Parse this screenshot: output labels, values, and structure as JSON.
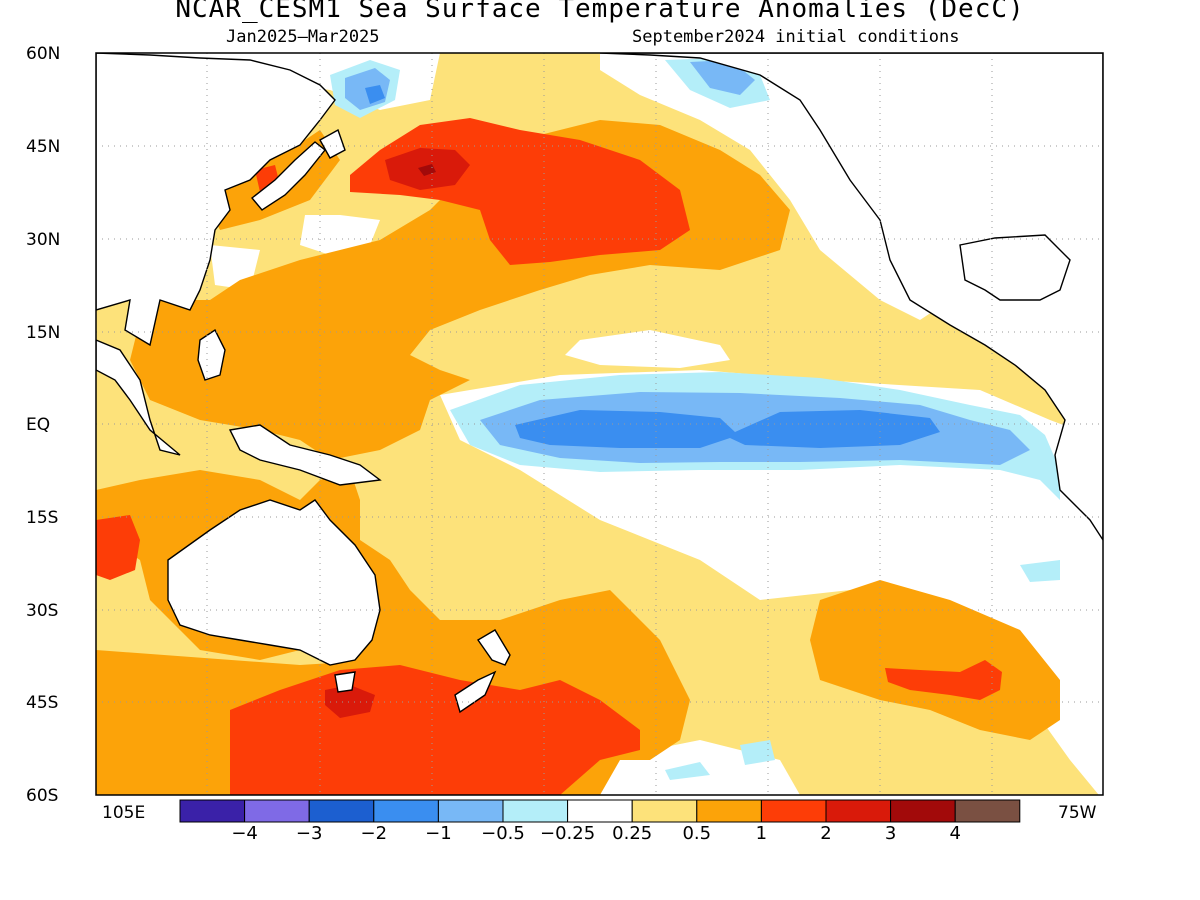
{
  "title": "NCAR_CESM1 Sea Surface Temperature Anomalies (DecC)",
  "subtitle_left": "Jan2025–Mar2025",
  "subtitle_right": "September2024 initial conditions",
  "lat_labels": [
    "60N",
    "45N",
    "30N",
    "15N",
    "EQ",
    "15S",
    "30S",
    "45S",
    "60S"
  ],
  "lon_labels": {
    "west": "105E",
    "east": "75W"
  },
  "colorbar": {
    "colors": [
      "#3a21a8",
      "#7f6ae6",
      "#1c5fd0",
      "#3a8ef0",
      "#78b8f6",
      "#b4eef9",
      "#ffffff",
      "#fde27a",
      "#fca309",
      "#fd3d07",
      "#d91a0a",
      "#a20a0a",
      "#7a5042"
    ],
    "labels": [
      "−4",
      "−3",
      "−2",
      "−1",
      "−0.5",
      "−0.25",
      "0.25",
      "0.5",
      "1",
      "2",
      "3",
      "4"
    ]
  }
}
